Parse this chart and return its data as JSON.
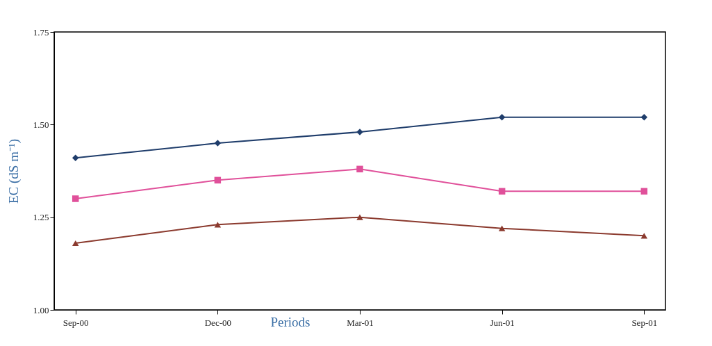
{
  "chart_data": {
    "type": "line",
    "xlabel": "Periods",
    "ylabel": "EC (dS m⁻¹)",
    "categories": [
      "Sep-00",
      "Dec-00",
      "Mar-01",
      "Jun-01",
      "Sep-01"
    ],
    "ylim": [
      1.0,
      1.75
    ],
    "yticks": [
      {
        "value": 1.0,
        "label": "1.00"
      },
      {
        "value": 1.25,
        "label": "1.25"
      },
      {
        "value": 1.5,
        "label": "1.50"
      },
      {
        "value": 1.75,
        "label": "1.75"
      }
    ],
    "grid": false,
    "line_style": "solid",
    "series": [
      {
        "color": "#1f3d6b",
        "marker": "diamond",
        "values": [
          1.41,
          1.45,
          1.48,
          1.52,
          1.52
        ]
      },
      {
        "color": "#e0509a",
        "marker": "square",
        "values": [
          1.3,
          1.35,
          1.38,
          1.32,
          1.32
        ]
      },
      {
        "color": "#8b3a2e",
        "marker": "triangle",
        "values": [
          1.18,
          1.23,
          1.25,
          1.22,
          1.2
        ]
      }
    ]
  }
}
